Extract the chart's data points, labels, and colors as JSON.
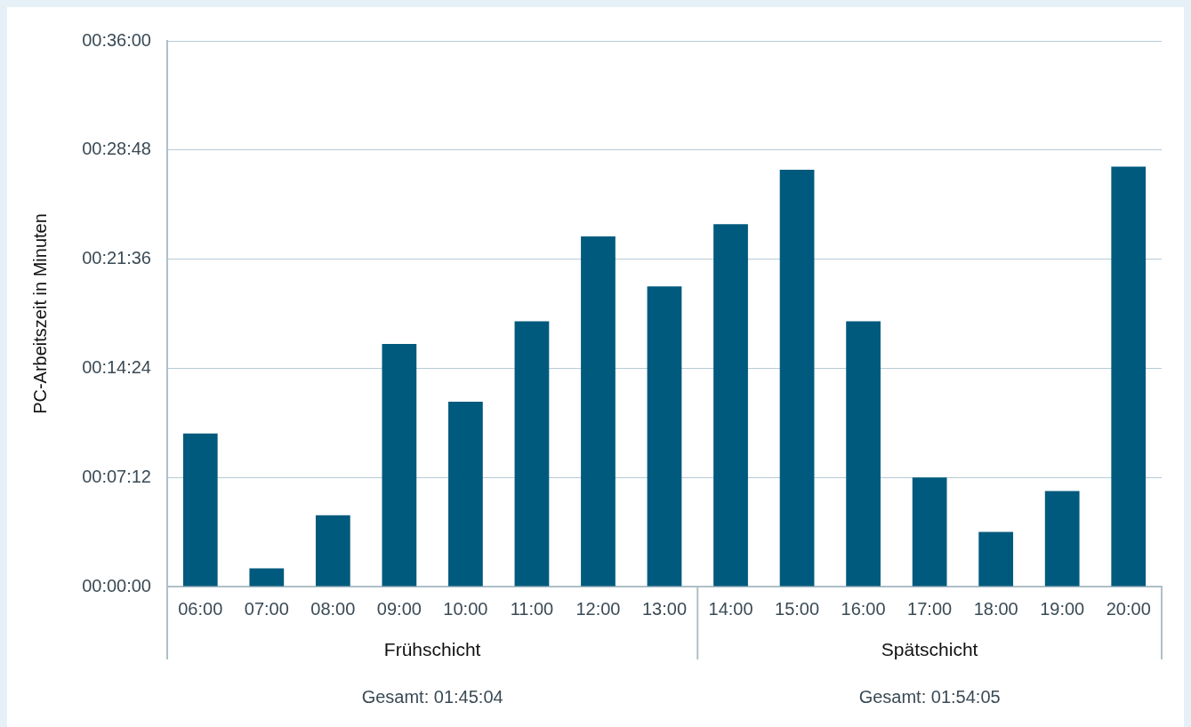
{
  "chart_data": {
    "type": "bar",
    "ylabel": "PC-Arbeitszeit in Minuten",
    "categories": [
      "06:00",
      "07:00",
      "08:00",
      "09:00",
      "10:00",
      "11:00",
      "12:00",
      "13:00",
      "14:00",
      "15:00",
      "16:00",
      "17:00",
      "18:00",
      "19:00",
      "20:00"
    ],
    "values": [
      10.1,
      1.2,
      4.7,
      16.0,
      12.2,
      17.5,
      23.1,
      19.8,
      23.9,
      27.5,
      17.5,
      7.2,
      3.6,
      6.3,
      27.7
    ],
    "color": "#005a7d",
    "ylim": [
      0,
      36
    ],
    "yticks": [
      {
        "value": 0,
        "label": "00:00:00"
      },
      {
        "value": 7.2,
        "label": "00:07:12"
      },
      {
        "value": 14.4,
        "label": "00:14:24"
      },
      {
        "value": 21.6,
        "label": "00:21:36"
      },
      {
        "value": 28.8,
        "label": "00:28:48"
      },
      {
        "value": 36,
        "label": "00:36:00"
      }
    ],
    "grid": "y",
    "annotations": [
      "Frühschicht",
      "Spätschicht",
      "Gesamt: 01:45:04",
      "Gesamt: 01:54:05"
    ]
  }
}
